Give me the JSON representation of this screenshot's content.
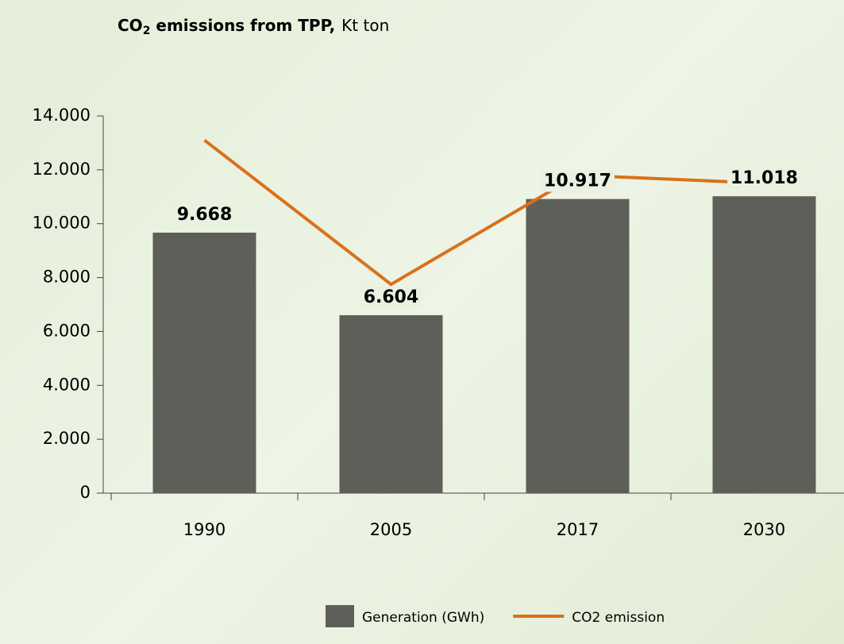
{
  "chart_data": {
    "type": "bar",
    "title": {
      "main": "CO",
      "subscript": "2",
      "rest": " emissions from TPP,",
      "unit": "Kt ton"
    },
    "categories": [
      "1990",
      "2005",
      "2017",
      "2030"
    ],
    "series": [
      {
        "name": "Generation (GWh)",
        "type": "bar",
        "color": "#5f5f59",
        "values": [
          9668,
          6604,
          10917,
          11018
        ],
        "value_labels": [
          "9.668",
          "6.604",
          "10.917",
          "11.018"
        ]
      },
      {
        "name": "CO2 emission",
        "type": "line",
        "color": "#d9711a",
        "values": [
          13100,
          7750,
          11800,
          11500
        ]
      }
    ],
    "ylim": [
      0,
      14000
    ],
    "yticks": [
      {
        "value": 0,
        "label": "0"
      },
      {
        "value": 2000,
        "label": "2.000"
      },
      {
        "value": 4000,
        "label": "4.000"
      },
      {
        "value": 6000,
        "label": "6.000"
      },
      {
        "value": 8000,
        "label": "8.000"
      },
      {
        "value": 10000,
        "label": "10.000"
      },
      {
        "value": 12000,
        "label": "12.000"
      },
      {
        "value": 14000,
        "label": "14.000"
      }
    ],
    "legend": "bottom"
  }
}
